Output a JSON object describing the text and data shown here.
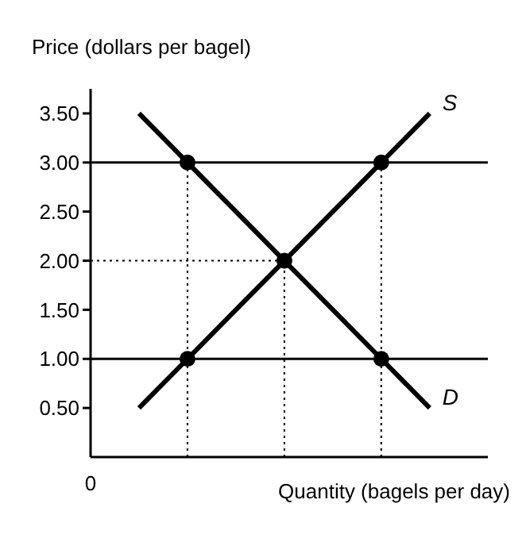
{
  "chart_data": {
    "type": "line",
    "ylabel": "Price (dollars per bagel)",
    "xlabel": "Quantity (bagels per day)",
    "categories": [
      "0",
      null,
      null,
      null,
      null,
      null,
      null,
      null
    ],
    "ylim": [
      0,
      3.75
    ],
    "yticks": [
      {
        "value": 0.5,
        "label": "0.50"
      },
      {
        "value": 1,
        "label": "1.00"
      },
      {
        "value": 1.5,
        "label": "1.50"
      },
      {
        "value": 2,
        "label": "2.00"
      },
      {
        "value": 2.5,
        "label": "2.50"
      },
      {
        "value": 3,
        "label": "3.00"
      },
      {
        "value": 3.5,
        "label": "3.50"
      }
    ],
    "grid": false,
    "legend": false,
    "ref_lines": [
      {
        "axis": "y",
        "value": 3,
        "color": "#000000"
      },
      {
        "axis": "y",
        "value": 1,
        "color": "#000000"
      }
    ],
    "series": [
      {
        "name": "S",
        "color": "#000000",
        "values": [
          null,
          0.5,
          1,
          1.5,
          2,
          2.5,
          3,
          3.5
        ]
      },
      {
        "name": "D",
        "color": "#000000",
        "values": [
          null,
          3.5,
          3,
          2.5,
          2,
          1.5,
          1,
          0.5
        ]
      },
      {
        "color": "#000000",
        "line_style": "dotted",
        "values": [
          2,
          2,
          2,
          2,
          2,
          null,
          null,
          null
        ]
      },
      {
        "type": "scatter",
        "color": "#000000",
        "marker": "circle",
        "values": [
          null,
          null,
          3,
          null,
          null,
          null,
          3,
          null
        ],
        "errors": [
          null,
          null,
          [
            0,
            3
          ],
          null,
          null,
          null,
          [
            0,
            3
          ],
          null
        ]
      },
      {
        "type": "scatter",
        "color": "#000000",
        "marker": "circle",
        "values": [
          null,
          null,
          1,
          null,
          2,
          null,
          1,
          null
        ],
        "errors": [
          null,
          null,
          [
            0,
            1
          ],
          null,
          [
            0,
            2
          ],
          null,
          [
            0,
            1
          ],
          null
        ]
      }
    ]
  }
}
